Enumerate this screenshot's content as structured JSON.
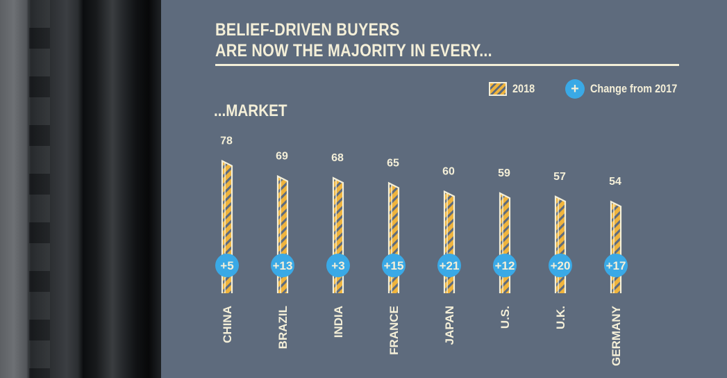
{
  "chart_data": {
    "type": "bar",
    "title": "BELIEF-DRIVEN BUYERS ARE NOW THE MAJORITY IN EVERY...",
    "title_lines": [
      "BELIEF-DRIVEN BUYERS",
      "ARE NOW THE MAJORITY IN EVERY..."
    ],
    "section_label": "...MARKET",
    "categories": [
      "CHINA",
      "BRAZIL",
      "INDIA",
      "FRANCE",
      "JAPAN",
      "U.S.",
      "U.K.",
      "GERMANY"
    ],
    "series": [
      {
        "name": "2018",
        "values": [
          78,
          69,
          68,
          65,
          60,
          59,
          57,
          54
        ]
      },
      {
        "name": "Change from 2017",
        "values": [
          "+5",
          "+13",
          "+3",
          "+15",
          "+21",
          "+12",
          "+20",
          "+17"
        ]
      }
    ],
    "legend": [
      {
        "label": "2018",
        "symbol": "hatched-bar"
      },
      {
        "label": "Change from 2017",
        "symbol": "+"
      }
    ],
    "legend_position": "top-right",
    "ylim": [
      0,
      100
    ],
    "grid": false,
    "colors": {
      "background": "#5e6b7d",
      "bar_fill": "#f0b43c",
      "bar_outline": "#f4efd8",
      "badge": "#3aa9e6",
      "text": "#f4efd8"
    }
  }
}
